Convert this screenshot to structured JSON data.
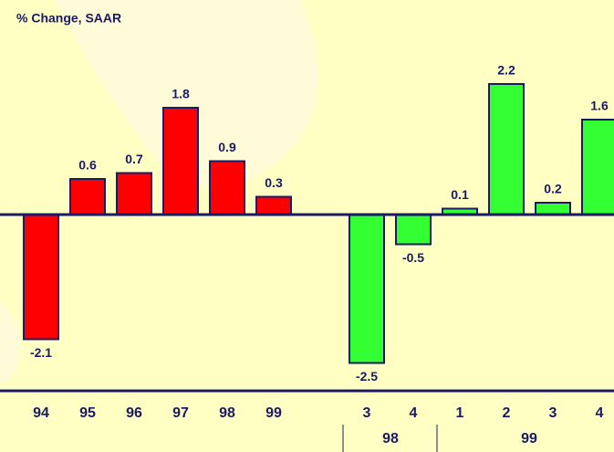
{
  "chart_data": {
    "type": "bar",
    "title": "% Change, SAAR",
    "categories": [
      "94",
      "95",
      "96",
      "97",
      "98",
      "99",
      "3",
      "4",
      "1",
      "2",
      "3",
      "4"
    ],
    "values": [
      -2.1,
      0.6,
      0.7,
      1.8,
      0.9,
      0.3,
      -2.5,
      -0.5,
      0.1,
      2.2,
      0.2,
      1.6
    ],
    "colors": [
      "#ff0000",
      "#ff0000",
      "#ff0000",
      "#ff0000",
      "#ff0000",
      "#ff0000",
      "#33ff33",
      "#33ff33",
      "#33ff33",
      "#33ff33",
      "#33ff33",
      "#33ff33"
    ],
    "group_labels": [
      "98",
      "99"
    ],
    "ylim": [
      -2.7,
      2.7
    ]
  }
}
